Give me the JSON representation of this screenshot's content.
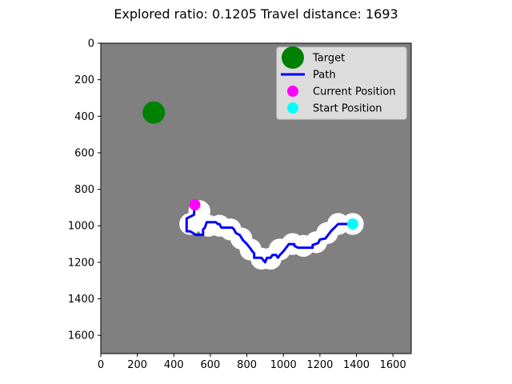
{
  "chart_data": {
    "type": "scatter",
    "title": "Explored ratio: 0.1205  Travel distance: 1693",
    "xlim": [
      0,
      1700
    ],
    "ylim": [
      1700,
      0
    ],
    "xticks": [
      0,
      200,
      400,
      600,
      800,
      1000,
      1200,
      1400,
      1600
    ],
    "yticks": [
      0,
      200,
      400,
      600,
      800,
      1000,
      1200,
      1400,
      1600
    ],
    "grid": false,
    "legend_position": "upper-right",
    "colors": {
      "background": "#808080",
      "explored": "#ffffff",
      "target": "#008000",
      "path": "#0000ff",
      "current": "#ff00ff",
      "start": "#00ffff"
    },
    "legend": [
      {
        "label": "Target",
        "marker": "circle",
        "color": "#008000"
      },
      {
        "label": "Path",
        "marker": "line",
        "color": "#0000ff"
      },
      {
        "label": "Current Position",
        "marker": "circle",
        "color": "#ff00ff"
      },
      {
        "label": "Start Position",
        "marker": "circle",
        "color": "#00ffff"
      }
    ],
    "target": {
      "x": 290,
      "y": 380
    },
    "current_position": {
      "x": 515,
      "y": 885
    },
    "start_position": {
      "x": 1380,
      "y": 990
    },
    "path": [
      [
        1380,
        990
      ],
      [
        1300,
        990
      ],
      [
        1260,
        1030
      ],
      [
        1230,
        1070
      ],
      [
        1200,
        1075
      ],
      [
        1190,
        1095
      ],
      [
        1160,
        1105
      ],
      [
        1160,
        1120
      ],
      [
        1080,
        1120
      ],
      [
        1060,
        1110
      ],
      [
        1060,
        1100
      ],
      [
        1030,
        1100
      ],
      [
        1000,
        1140
      ],
      [
        980,
        1160
      ],
      [
        970,
        1175
      ],
      [
        960,
        1160
      ],
      [
        940,
        1160
      ],
      [
        930,
        1175
      ],
      [
        910,
        1175
      ],
      [
        900,
        1200
      ],
      [
        880,
        1175
      ],
      [
        840,
        1175
      ],
      [
        840,
        1150
      ],
      [
        830,
        1140
      ],
      [
        820,
        1125
      ],
      [
        800,
        1100
      ],
      [
        780,
        1080
      ],
      [
        760,
        1050
      ],
      [
        740,
        1040
      ],
      [
        730,
        1020
      ],
      [
        720,
        1010
      ],
      [
        660,
        1010
      ],
      [
        650,
        990
      ],
      [
        640,
        990
      ],
      [
        630,
        980
      ],
      [
        580,
        980
      ],
      [
        570,
        1010
      ],
      [
        560,
        1020
      ],
      [
        560,
        1050
      ],
      [
        520,
        1050
      ],
      [
        490,
        1030
      ],
      [
        470,
        1030
      ],
      [
        470,
        960
      ],
      [
        490,
        950
      ],
      [
        510,
        940
      ],
      [
        515,
        885
      ]
    ],
    "explored_regions": [
      {
        "x": 490,
        "y": 990,
        "r": 60
      },
      {
        "x": 540,
        "y": 920,
        "r": 60
      },
      {
        "x": 590,
        "y": 1000,
        "r": 60
      },
      {
        "x": 650,
        "y": 1000,
        "r": 60
      },
      {
        "x": 710,
        "y": 1020,
        "r": 60
      },
      {
        "x": 770,
        "y": 1070,
        "r": 60
      },
      {
        "x": 820,
        "y": 1130,
        "r": 60
      },
      {
        "x": 880,
        "y": 1180,
        "r": 60
      },
      {
        "x": 930,
        "y": 1180,
        "r": 60
      },
      {
        "x": 980,
        "y": 1130,
        "r": 60
      },
      {
        "x": 1050,
        "y": 1100,
        "r": 60
      },
      {
        "x": 1110,
        "y": 1110,
        "r": 60
      },
      {
        "x": 1180,
        "y": 1090,
        "r": 60
      },
      {
        "x": 1240,
        "y": 1040,
        "r": 60
      },
      {
        "x": 1300,
        "y": 990,
        "r": 60
      },
      {
        "x": 1380,
        "y": 990,
        "r": 60
      }
    ]
  }
}
